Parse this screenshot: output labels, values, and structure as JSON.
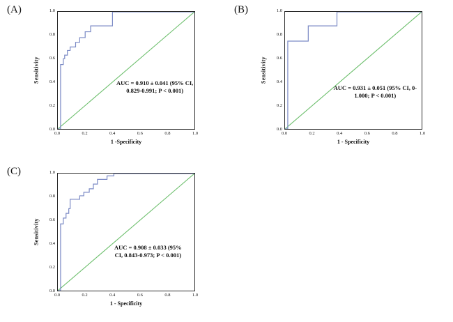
{
  "axis": {
    "ticks": [
      "0.0",
      "0.2",
      "0.4",
      "0.6",
      "0.8",
      "1.0"
    ]
  },
  "colors": {
    "roc_curve": "#7b8ac5",
    "reference_line": "#6dbf6d",
    "plot_border": "#2a2a2a"
  },
  "chart_data": [
    {
      "type": "line",
      "panel_label": "(A)",
      "title": "",
      "xlabel": "1 -Specificity",
      "ylabel": "Sensitivity",
      "xlim": [
        0,
        1
      ],
      "ylim": [
        0,
        1
      ],
      "x_ticks": [
        0.0,
        0.2,
        0.4,
        0.6,
        0.8,
        1.0
      ],
      "y_ticks": [
        0.0,
        0.2,
        0.4,
        0.6,
        0.8,
        1.0
      ],
      "grid": "off",
      "legend": "none",
      "annotation": "AUC = 0.910 ± 0.041 (95% CI,\n0.829-0.991; P < 0.001)",
      "auc": 0.91,
      "auc_se": 0.041,
      "ci_low": 0.829,
      "ci_high": 0.991,
      "p_value": "P < 0.001",
      "series": [
        {
          "name": "ROC curve",
          "color": "#7b8ac5",
          "points": [
            [
              0,
              0
            ],
            [
              0.02,
              0
            ],
            [
              0.02,
              0.55
            ],
            [
              0.04,
              0.55
            ],
            [
              0.04,
              0.6
            ],
            [
              0.05,
              0.6
            ],
            [
              0.05,
              0.63
            ],
            [
              0.07,
              0.63
            ],
            [
              0.07,
              0.67
            ],
            [
              0.09,
              0.67
            ],
            [
              0.09,
              0.7
            ],
            [
              0.13,
              0.7
            ],
            [
              0.13,
              0.74
            ],
            [
              0.16,
              0.74
            ],
            [
              0.16,
              0.78
            ],
            [
              0.2,
              0.78
            ],
            [
              0.2,
              0.83
            ],
            [
              0.24,
              0.83
            ],
            [
              0.24,
              0.88
            ],
            [
              0.4,
              0.88
            ],
            [
              0.4,
              1.0
            ],
            [
              1.0,
              1.0
            ]
          ]
        },
        {
          "name": "Reference line",
          "color": "#6dbf6d",
          "points": [
            [
              0,
              0
            ],
            [
              1,
              1
            ]
          ]
        }
      ]
    },
    {
      "type": "line",
      "panel_label": "(B)",
      "title": "",
      "xlabel": "1 - Specificity",
      "ylabel": "Sensitivity",
      "xlim": [
        0,
        1
      ],
      "ylim": [
        0,
        1
      ],
      "x_ticks": [
        0.0,
        0.2,
        0.4,
        0.6,
        0.8,
        1.0
      ],
      "y_ticks": [
        0.0,
        0.2,
        0.4,
        0.6,
        0.8,
        1.0
      ],
      "grid": "off",
      "legend": "none",
      "annotation": "AUC = 0.931 ± 0.051 (95% CI, 0-\n1.000; P < 0.001)",
      "auc": 0.931,
      "auc_se": 0.051,
      "ci_low": 0.0,
      "ci_high": 1.0,
      "p_value": "P < 0.001",
      "series": [
        {
          "name": "ROC curve",
          "color": "#7b8ac5",
          "points": [
            [
              0,
              0
            ],
            [
              0.02,
              0
            ],
            [
              0.02,
              0.75
            ],
            [
              0.17,
              0.75
            ],
            [
              0.17,
              0.88
            ],
            [
              0.38,
              0.88
            ],
            [
              0.38,
              1.0
            ],
            [
              1.0,
              1.0
            ]
          ]
        },
        {
          "name": "Reference line",
          "color": "#6dbf6d",
          "points": [
            [
              0,
              0
            ],
            [
              1,
              1
            ]
          ]
        }
      ]
    },
    {
      "type": "line",
      "panel_label": "(C)",
      "title": "",
      "xlabel": "1 - Specificity",
      "ylabel": "Sensitivity",
      "xlim": [
        0,
        1
      ],
      "ylim": [
        0,
        1
      ],
      "x_ticks": [
        0.0,
        0.2,
        0.4,
        0.6,
        0.8,
        1.0
      ],
      "y_ticks": [
        0.0,
        0.2,
        0.4,
        0.6,
        0.8,
        1.0
      ],
      "grid": "off",
      "legend": "none",
      "annotation": "AUC = 0.908 ± 0.033 (95%\nCI, 0.843-0.973;  P < 0.001)",
      "auc": 0.908,
      "auc_se": 0.033,
      "ci_low": 0.843,
      "ci_high": 0.973,
      "p_value": "P < 0.001",
      "series": [
        {
          "name": "ROC curve",
          "color": "#7b8ac5",
          "points": [
            [
              0,
              0
            ],
            [
              0.02,
              0
            ],
            [
              0.02,
              0.57
            ],
            [
              0.04,
              0.57
            ],
            [
              0.04,
              0.62
            ],
            [
              0.06,
              0.62
            ],
            [
              0.06,
              0.66
            ],
            [
              0.08,
              0.66
            ],
            [
              0.08,
              0.7
            ],
            [
              0.09,
              0.7
            ],
            [
              0.09,
              0.78
            ],
            [
              0.16,
              0.78
            ],
            [
              0.16,
              0.81
            ],
            [
              0.19,
              0.81
            ],
            [
              0.19,
              0.84
            ],
            [
              0.23,
              0.84
            ],
            [
              0.23,
              0.87
            ],
            [
              0.26,
              0.87
            ],
            [
              0.26,
              0.91
            ],
            [
              0.29,
              0.91
            ],
            [
              0.29,
              0.95
            ],
            [
              0.36,
              0.95
            ],
            [
              0.36,
              0.98
            ],
            [
              0.41,
              0.98
            ],
            [
              0.41,
              1.0
            ],
            [
              1.0,
              1.0
            ]
          ]
        },
        {
          "name": "Reference line",
          "color": "#6dbf6d",
          "points": [
            [
              0,
              0
            ],
            [
              1,
              1
            ]
          ]
        }
      ]
    }
  ]
}
